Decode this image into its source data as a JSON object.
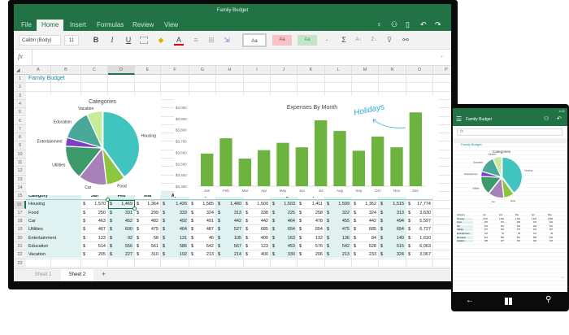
{
  "app": {
    "title": "Family Budget"
  },
  "ribbon": {
    "tabs": [
      "File",
      "Home",
      "Insert",
      "Formulas",
      "Review",
      "View"
    ],
    "active": "Home",
    "font_name": "Calibri (Body)",
    "font_size": "11",
    "bold": "B",
    "italic": "I",
    "underline": "U",
    "font_color_glyph": "A",
    "style_normal": "Aa",
    "style_bad": "Aa",
    "style_good": "Aa",
    "sum_glyph": "Σ",
    "right_icons": [
      "lightbulb-icon",
      "share-icon",
      "book-icon",
      "undo-icon",
      "redo-icon"
    ]
  },
  "formula_bar": {
    "fx": "fx",
    "value": ""
  },
  "columns": [
    "A",
    "B",
    "C",
    "D",
    "E",
    "F",
    "G",
    "H",
    "I",
    "J",
    "K",
    "L",
    "M",
    "N",
    "O",
    "P"
  ],
  "selected_column": "D",
  "rows": [
    "1",
    "2",
    "3",
    "4",
    "5",
    "6",
    "7",
    "8",
    "9",
    "10",
    "11",
    "12",
    "13",
    "14",
    "15",
    "16",
    "17",
    "18",
    "19",
    "20",
    "21",
    "22",
    "23"
  ],
  "selected_row": "16",
  "sheet_title": "Family Budget",
  "table": {
    "headers": [
      "Category",
      "Jan",
      "Feb",
      "Mar",
      "Apr",
      "May",
      "Jun",
      "Jul",
      "Aug",
      "Sep",
      "Oct",
      "Nov",
      "Dec",
      "Total"
    ],
    "currency": "$",
    "rows": [
      {
        "category": "Housing",
        "values": [
          "1,570",
          "1,469",
          "1,364",
          "1,426",
          "1,585",
          "1,480",
          "1,500",
          "1,503",
          "1,411",
          "1,599",
          "1,352",
          "1,515",
          "17,774"
        ]
      },
      {
        "category": "Food",
        "values": [
          "250",
          "331",
          "299",
          "333",
          "324",
          "313",
          "338",
          "225",
          "258",
          "322",
          "324",
          "313",
          "3,630"
        ]
      },
      {
        "category": "Car",
        "values": [
          "463",
          "452",
          "482",
          "492",
          "491",
          "442",
          "442",
          "464",
          "478",
          "455",
          "442",
          "494",
          "5,597"
        ]
      },
      {
        "category": "Utilities",
        "values": [
          "467",
          "600",
          "475",
          "464",
          "487",
          "527",
          "685",
          "654",
          "554",
          "475",
          "685",
          "654",
          "6,727"
        ]
      },
      {
        "category": "Entertainment",
        "values": [
          "123",
          "92",
          "58",
          "131",
          "46",
          "105",
          "400",
          "163",
          "132",
          "136",
          "84",
          "140",
          "1,610"
        ]
      },
      {
        "category": "Education",
        "values": [
          "514",
          "556",
          "561",
          "586",
          "542",
          "567",
          "123",
          "453",
          "576",
          "542",
          "528",
          "515",
          "6,063"
        ]
      },
      {
        "category": "Vacation",
        "values": [
          "205",
          "227",
          "310",
          "192",
          "213",
          "214",
          "400",
          "330",
          "206",
          "213",
          "233",
          "324",
          "3,067"
        ]
      }
    ]
  },
  "sheets": {
    "tabs": [
      "Sheet 1",
      "Sheet 2"
    ],
    "active": "Sheet 2",
    "add": "+"
  },
  "chart_data": [
    {
      "type": "pie",
      "title": "Categories",
      "categories": [
        "Housing",
        "Food",
        "Car",
        "Utilities",
        "Entertainment",
        "Education",
        "Vacation"
      ],
      "values": [
        17774,
        3630,
        5597,
        6727,
        1610,
        6063,
        3067
      ],
      "colors": [
        "#3fc4c0",
        "#8cc63f",
        "#a681b8",
        "#3d9a6b",
        "#7d3fc4",
        "#4aa89a",
        "#c6ec9a"
      ]
    },
    {
      "type": "bar",
      "title": "Expenses By Month",
      "categories": [
        "Jan",
        "Feb",
        "Mar",
        "Apr",
        "May",
        "Jun",
        "Jul",
        "Aug",
        "Sep",
        "Oct",
        "Nov",
        "Dec"
      ],
      "values": [
        3590,
        3725,
        3545,
        3620,
        3685,
        3645,
        3885,
        3790,
        3615,
        3740,
        3645,
        3955
      ],
      "ylim": [
        3300,
        4000
      ],
      "yticks": [
        "$3,300",
        "$3,400",
        "$3,500",
        "$3,600",
        "$3,700",
        "$3,800",
        "$3,900",
        "$4,000"
      ],
      "color": "#6db33f",
      "annotation": "Holidays",
      "grid": false
    }
  ],
  "phone": {
    "time": "1:01",
    "title": "Family Budget",
    "fx": "fx",
    "more": "..."
  },
  "colors": {
    "brand": "#217346",
    "table_fill": "#dff2f1",
    "accent_text": "#1e8a9a"
  }
}
